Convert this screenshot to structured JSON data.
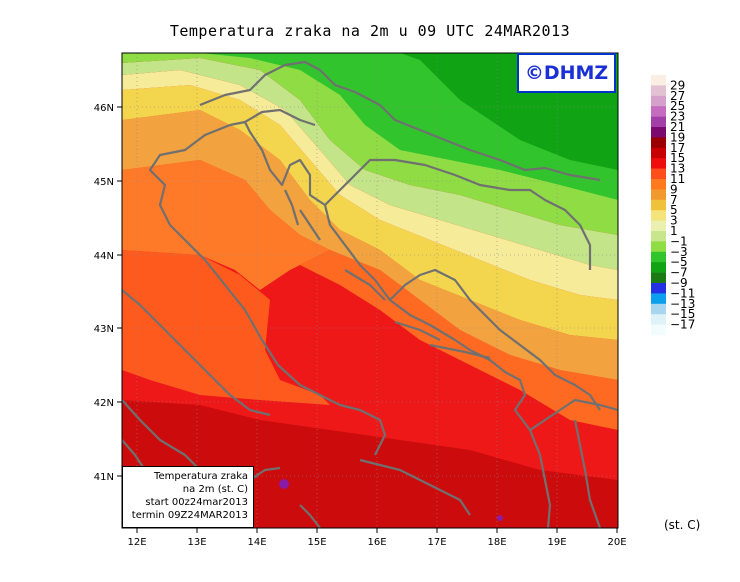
{
  "title": "Temperatura zraka na 2m u 09 UTC 24MAR2013",
  "logo": "©DHMZ",
  "info_box": {
    "line1": "Temperatura zraka",
    "line2": "na 2m (st. C)",
    "line3": "start 00z24mar2013",
    "line4": "termin 09Z24MAR2013"
  },
  "axes": {
    "lon_ticks": [
      "12E",
      "13E",
      "14E",
      "15E",
      "16E",
      "17E",
      "18E",
      "19E",
      "20E"
    ],
    "lat_ticks": [
      "46N",
      "45N",
      "44N",
      "43N",
      "42N",
      "41N"
    ]
  },
  "colorbar": {
    "labels": [
      "29",
      "27",
      "25",
      "23",
      "21",
      "19",
      "17",
      "15",
      "13",
      "11",
      "9",
      "7",
      "5",
      "3",
      "1",
      "−1",
      "−3",
      "−5",
      "−7",
      "−9",
      "−11",
      "−13",
      "−15",
      "−17"
    ],
    "unit": "(st. C)",
    "colors": [
      "#fbeee2",
      "#e2c2d2",
      "#d6a0cc",
      "#c56bc0",
      "#a33fa8",
      "#7a0a6e",
      "#9a0000",
      "#c80000",
      "#ee0c0c",
      "#ff4d1c",
      "#ff7a1e",
      "#f2992e",
      "#f0c23a",
      "#f5e37c",
      "#e9f0b0",
      "#c8e68e",
      "#8fdc45",
      "#32c42c",
      "#10a313",
      "#1a7a14",
      "#2430e6",
      "#0aa0ee",
      "#a8d6ef",
      "#def2f7",
      "#f3fcfd"
    ]
  },
  "map_colors": {
    "ocean_far": "#ee1818",
    "south_dark": "#cc0c0c",
    "coast_orange": "#ff5a1e",
    "mid_orange": "#ff7a28",
    "light_orange": "#f2a23e",
    "yellow": "#f4d64e",
    "pale_yellow": "#f6eb98",
    "yellow_green": "#c4e489",
    "light_green": "#8fdc45",
    "green": "#32c42c",
    "dark_green": "#10a313",
    "purple": "#8a1aa8",
    "border_gray": "#707070"
  }
}
